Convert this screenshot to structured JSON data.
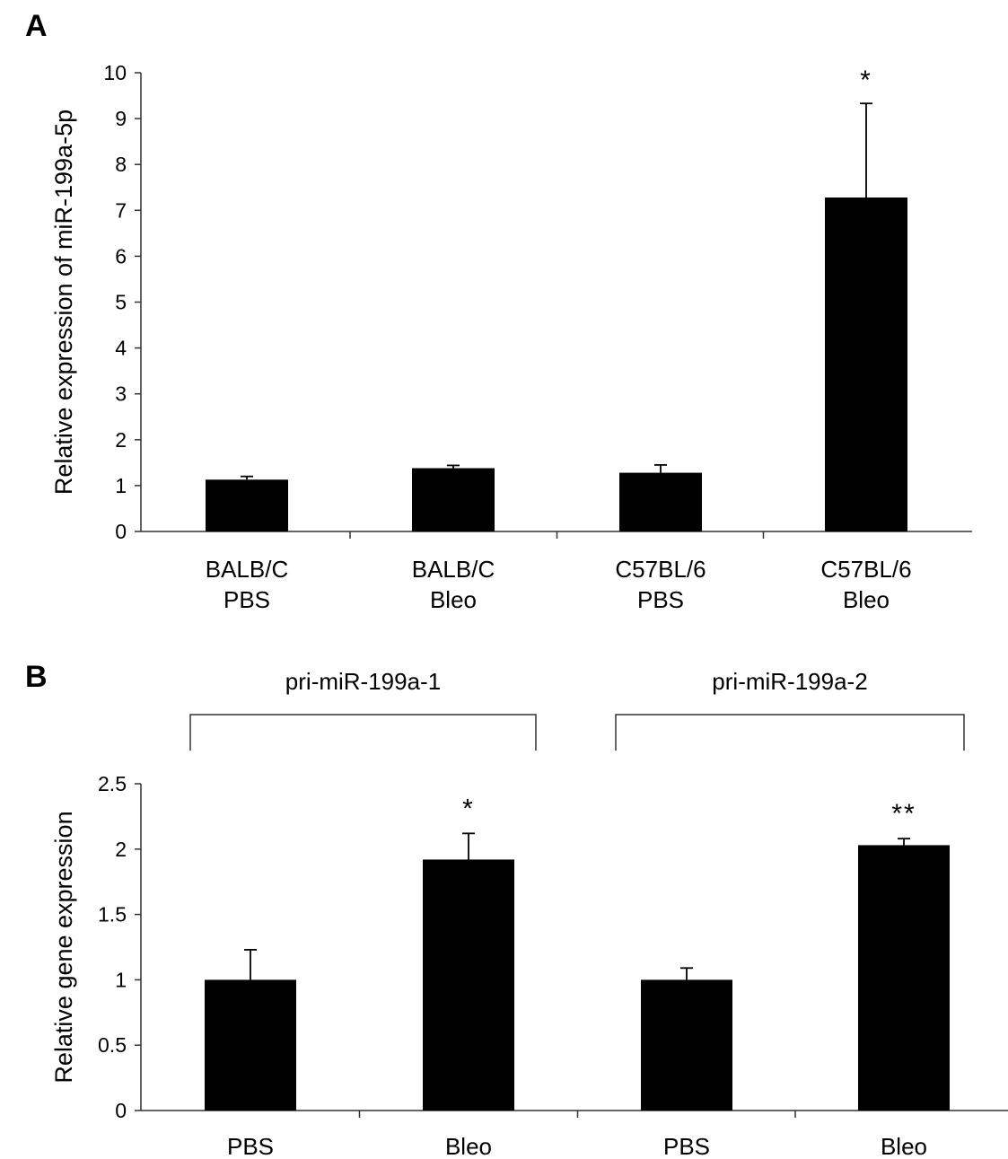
{
  "chart_data": [
    {
      "panel_label": "A",
      "type": "bar",
      "categories": [
        [
          "BALB/C",
          "PBS"
        ],
        [
          "BALB/C",
          "Bleo"
        ],
        [
          "C57BL/6",
          "PBS"
        ],
        [
          "C57BL/6",
          "Bleo"
        ]
      ],
      "values": [
        1.13,
        1.38,
        1.28,
        7.28
      ],
      "error_upper": [
        0.07,
        0.06,
        0.17,
        2.05
      ],
      "significance": [
        "",
        "",
        "",
        "*"
      ],
      "ylabel": "Relative expression of miR-199a-5p",
      "xlabel": "",
      "ylim": [
        0,
        10
      ],
      "yticks": [
        "0",
        "1",
        "2",
        "3",
        "4",
        "5",
        "6",
        "7",
        "8",
        "9",
        "10"
      ],
      "grid": false,
      "bar_color": "#000000"
    },
    {
      "panel_label": "B",
      "type": "bar",
      "categories": [
        [
          "PBS"
        ],
        [
          "Bleo"
        ],
        [
          "PBS"
        ],
        [
          "Bleo"
        ]
      ],
      "groups": [
        {
          "label": "pri-miR-199a-1",
          "categories": [
            0,
            1
          ]
        },
        {
          "label": "pri-miR-199a-2",
          "categories": [
            2,
            3
          ]
        }
      ],
      "values": [
        1.0,
        1.92,
        1.0,
        2.03
      ],
      "error_upper": [
        0.23,
        0.2,
        0.09,
        0.05
      ],
      "significance": [
        "",
        "*",
        "",
        "**"
      ],
      "ylabel": "Relative gene expression",
      "xlabel": "",
      "ylim": [
        0,
        2.5
      ],
      "yticks": [
        "0",
        "0.5",
        "1",
        "1.5",
        "2",
        "2.5"
      ],
      "grid": false,
      "bar_color": "#000000"
    }
  ]
}
